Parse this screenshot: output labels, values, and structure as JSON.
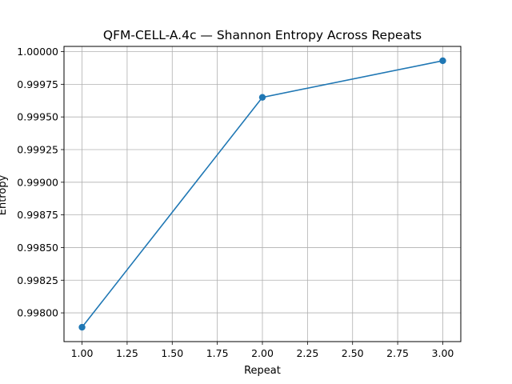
{
  "chart_data": {
    "type": "line",
    "title": "QFM-CELL-A.4c — Shannon Entropy Across Repeats",
    "xlabel": "Repeat",
    "ylabel": "Entropy",
    "x": [
      1.0,
      2.0,
      3.0
    ],
    "series": [
      {
        "values": [
          0.99789,
          0.99965,
          0.99993
        ]
      }
    ],
    "xlim": [
      0.9,
      3.1
    ],
    "ylim": [
      0.99778,
      1.00004
    ],
    "x_ticks": [
      1.0,
      1.25,
      1.5,
      1.75,
      2.0,
      2.25,
      2.5,
      2.75,
      3.0
    ],
    "x_tick_labels": [
      "1.00",
      "1.25",
      "1.50",
      "1.75",
      "2.00",
      "2.25",
      "2.50",
      "2.75",
      "3.00"
    ],
    "y_ticks": [
      0.998,
      0.99825,
      0.9985,
      0.99875,
      0.999,
      0.99925,
      0.9995,
      0.99975,
      1.0
    ],
    "y_tick_labels": [
      "0.99800",
      "0.99825",
      "0.99850",
      "0.99875",
      "0.99900",
      "0.99925",
      "0.99950",
      "0.99975",
      "1.00000"
    ],
    "grid": true,
    "legend": "none",
    "line_color": "#1f77b4",
    "marker": "circle"
  }
}
